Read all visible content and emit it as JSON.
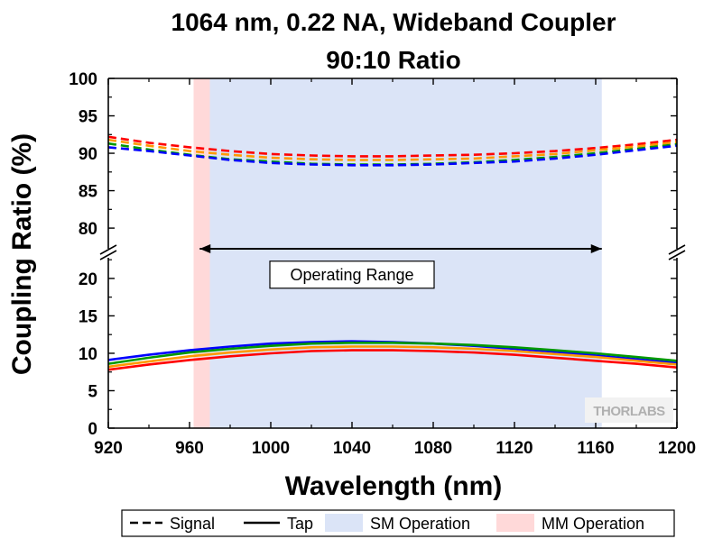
{
  "chart_data": {
    "type": "line",
    "title_line1": "1064 nm, 0.22 NA, Wideband Coupler",
    "title_line2": "90:10 Ratio",
    "xlabel": "Wavelength (nm)",
    "ylabel": "Coupling Ratio (%)",
    "xlim": [
      920,
      1200
    ],
    "x_ticks": [
      "920",
      "960",
      "1000",
      "1040",
      "1080",
      "1120",
      "1160",
      "1200"
    ],
    "y_upper_range": [
      77,
      100
    ],
    "y_lower_range": [
      0,
      23
    ],
    "y_ticks_upper": [
      "80",
      "85",
      "90",
      "95",
      "100"
    ],
    "y_ticks_lower": [
      "0",
      "5",
      "10",
      "15",
      "20"
    ],
    "grid": false,
    "axis_break": true,
    "x": [
      920,
      940,
      960,
      980,
      1000,
      1020,
      1040,
      1060,
      1080,
      1100,
      1120,
      1140,
      1160,
      1180,
      1200
    ],
    "series": [
      {
        "color": "#ff0000",
        "style": "dashed",
        "values": [
          92.2,
          91.4,
          90.8,
          90.3,
          89.9,
          89.7,
          89.6,
          89.6,
          89.7,
          89.8,
          90.0,
          90.3,
          90.7,
          91.2,
          91.8
        ]
      },
      {
        "color": "#ff9900",
        "style": "dashed",
        "values": [
          91.8,
          91.0,
          90.3,
          89.8,
          89.4,
          89.2,
          89.1,
          89.1,
          89.2,
          89.3,
          89.6,
          89.9,
          90.4,
          90.9,
          91.5
        ]
      },
      {
        "color": "#009900",
        "style": "dashed",
        "values": [
          91.3,
          90.5,
          89.8,
          89.2,
          88.9,
          88.6,
          88.5,
          88.5,
          88.6,
          88.8,
          89.1,
          89.5,
          90.0,
          90.6,
          91.2
        ]
      },
      {
        "color": "#0000ff",
        "style": "dashed",
        "values": [
          90.8,
          90.3,
          89.7,
          89.1,
          88.7,
          88.5,
          88.4,
          88.4,
          88.5,
          88.7,
          88.9,
          89.3,
          89.8,
          90.4,
          91.0
        ]
      },
      {
        "color": "#0000ff",
        "style": "solid",
        "values": [
          9.1,
          9.8,
          10.4,
          10.9,
          11.3,
          11.5,
          11.6,
          11.5,
          11.3,
          11.0,
          10.6,
          10.2,
          9.7,
          9.2,
          8.7
        ]
      },
      {
        "color": "#009900",
        "style": "solid",
        "values": [
          8.6,
          9.4,
          10.1,
          10.6,
          11.0,
          11.3,
          11.4,
          11.4,
          11.3,
          11.1,
          10.8,
          10.4,
          10.0,
          9.5,
          9.0
        ]
      },
      {
        "color": "#ff9900",
        "style": "solid",
        "values": [
          8.2,
          8.9,
          9.6,
          10.1,
          10.5,
          10.8,
          10.9,
          10.9,
          10.8,
          10.6,
          10.3,
          9.9,
          9.5,
          9.0,
          8.5
        ]
      },
      {
        "color": "#ff0000",
        "style": "solid",
        "values": [
          7.8,
          8.5,
          9.1,
          9.6,
          10.0,
          10.3,
          10.4,
          10.4,
          10.3,
          10.1,
          9.8,
          9.4,
          9.0,
          8.6,
          8.1
        ]
      }
    ],
    "regions": [
      {
        "label": "SM Operation",
        "x_range": [
          962,
          1163
        ],
        "color": "#dbe4f7"
      },
      {
        "label": "MM Operation",
        "x_range": [
          962,
          970
        ],
        "color": "#ffd9d9"
      }
    ],
    "annotation": {
      "label": "Operating Range",
      "x_range": [
        965,
        1163
      ],
      "x_text": 1040,
      "y_text": 20.5
    },
    "legend": {
      "placement": "bottom",
      "items": [
        {
          "label": "Signal",
          "kind": "dashed-line"
        },
        {
          "label": "Tap",
          "kind": "solid-line"
        },
        {
          "label": "SM Operation",
          "kind": "fill",
          "color": "#dbe4f7"
        },
        {
          "label": "MM Operation",
          "kind": "fill",
          "color": "#ffd9d9"
        }
      ]
    },
    "logo_text": "THORLABS"
  }
}
